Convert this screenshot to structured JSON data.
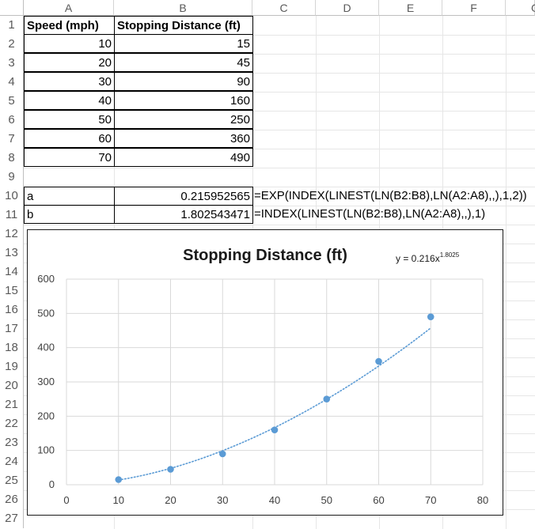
{
  "columns": [
    "A",
    "B",
    "C",
    "D",
    "E",
    "F",
    "G"
  ],
  "rows": [
    "1",
    "2",
    "3",
    "4",
    "5",
    "6",
    "7",
    "8",
    "9",
    "10",
    "11",
    "12",
    "13",
    "14",
    "15",
    "16",
    "17",
    "18",
    "19",
    "20",
    "21",
    "22",
    "23",
    "24",
    "25",
    "26",
    "27"
  ],
  "table": {
    "header_speed": "Speed (mph)",
    "header_distance": "Stopping Distance (ft)",
    "speed": [
      "10",
      "20",
      "30",
      "40",
      "50",
      "60",
      "70"
    ],
    "distance": [
      "15",
      "45",
      "90",
      "160",
      "250",
      "360",
      "490"
    ]
  },
  "params": {
    "a_label": "a",
    "a_value": "0.215952565",
    "a_formula": "=EXP(INDEX(LINEST(LN(B2:B8),LN(A2:A8),,),1,2))",
    "b_label": "b",
    "b_value": "1.802543471",
    "b_formula": "=INDEX(LINEST(LN(B2:B8),LN(A2:A8),,),1)"
  },
  "chart_data": {
    "type": "scatter",
    "title": "Stopping Distance (ft)",
    "trendline_label": "y = 0.216x",
    "trendline_exponent": "1.8025",
    "trendline": {
      "type": "power",
      "a": 0.216,
      "b": 1.8025,
      "style": "dotted"
    },
    "x": [
      10,
      20,
      30,
      40,
      50,
      60,
      70
    ],
    "y": [
      15,
      45,
      90,
      160,
      250,
      360,
      490
    ],
    "xlim": [
      0,
      80
    ],
    "ylim": [
      0,
      600
    ],
    "xticks": [
      0,
      10,
      20,
      30,
      40,
      50,
      60,
      70,
      80
    ],
    "yticks": [
      0,
      100,
      200,
      300,
      400,
      500,
      600
    ],
    "xlabel": "",
    "ylabel": "",
    "grid": true,
    "legend": "none",
    "marker_color": "#5b9bd5",
    "trendline_color": "#5b9bd5"
  }
}
